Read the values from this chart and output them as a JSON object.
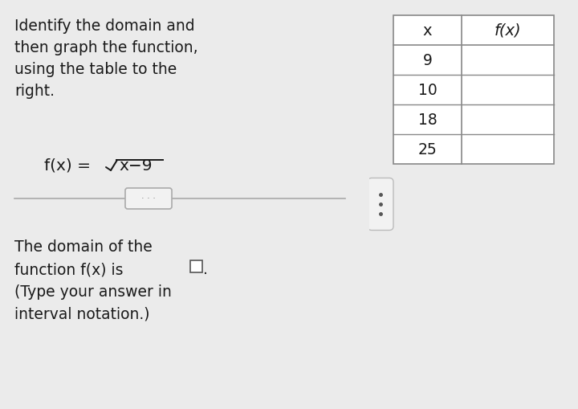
{
  "background_color": "#ebebeb",
  "left_panel_bg": "#f2f2f2",
  "right_panel_bg": "#f2f2f2",
  "title_lines": [
    "Identify the domain and",
    "then graph the function,",
    "using the table to the",
    "right."
  ],
  "function_text": "f(x) = ",
  "function_sqrt_arg": "x−9",
  "table_headers": [
    "x",
    "f(x)"
  ],
  "table_x_values": [
    "9",
    "10",
    "18",
    "25"
  ],
  "domain_lines": [
    "The domain of the",
    "function f(x) is",
    "(Type your answer in",
    "interval notation.)"
  ],
  "dots_button_text": "· · ·",
  "text_color": "#1a1a1a",
  "table_line_color": "#888888",
  "font_size_body": 13.5,
  "font_size_function": 14.5,
  "font_size_table_header": 14,
  "font_size_table_data": 13.5,
  "fig_w": 7.2,
  "fig_h": 5.1,
  "dpi": 100
}
